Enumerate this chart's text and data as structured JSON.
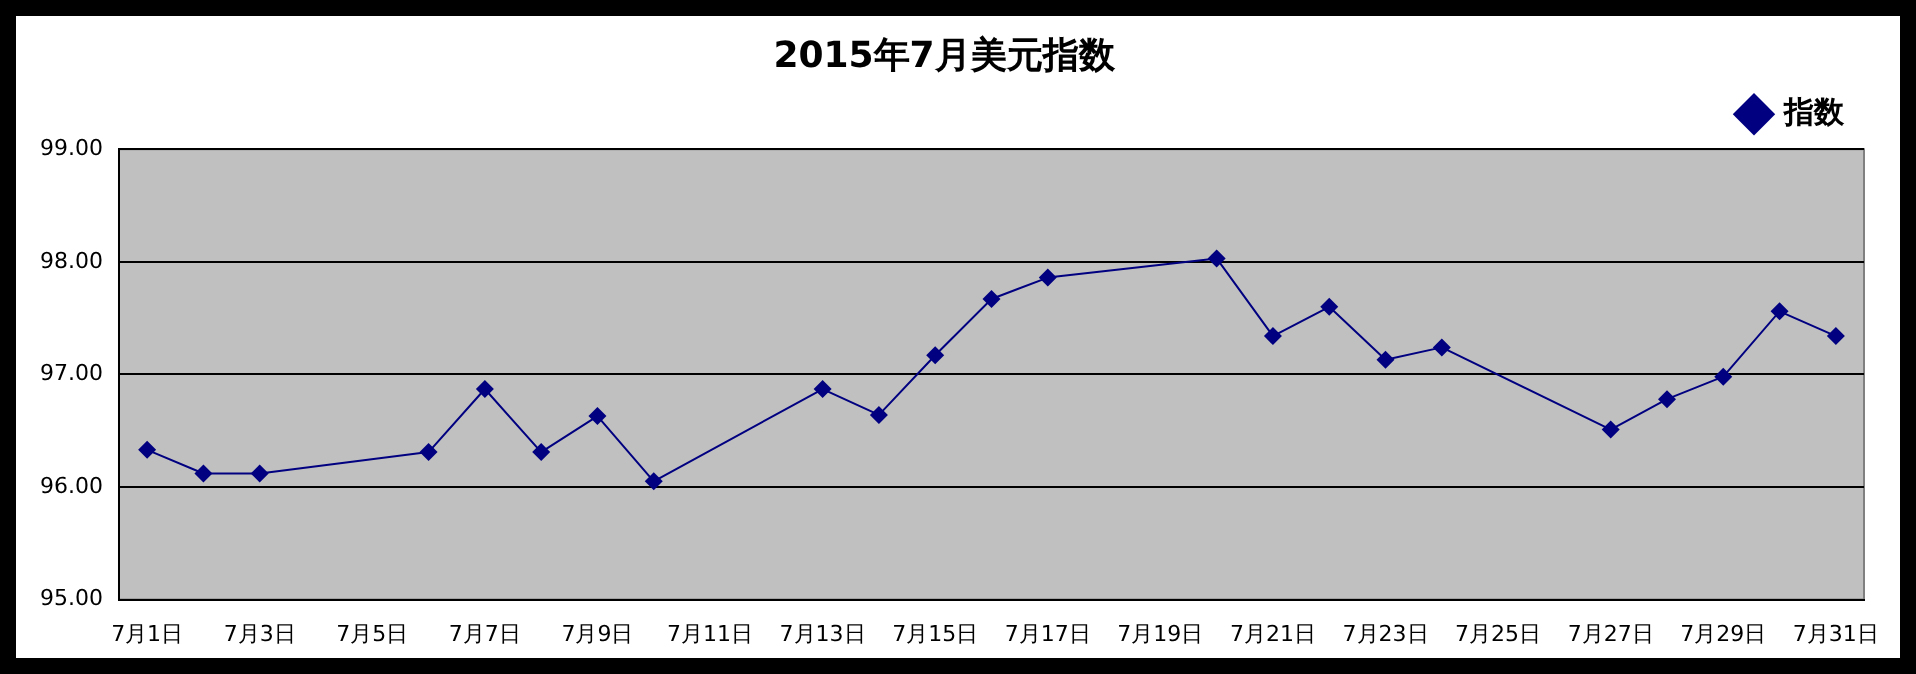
{
  "chart_data": {
    "type": "line",
    "title": "2015年7月美元指数",
    "categories": [
      "7月1日",
      null,
      "7月3日",
      null,
      "7月5日",
      null,
      "7月7日",
      null,
      "7月9日",
      null,
      "7月11日",
      null,
      "7月13日",
      null,
      "7月15日",
      null,
      "7月17日",
      null,
      "7月19日",
      null,
      "7月21日",
      null,
      "7月23日",
      null,
      "7月25日",
      null,
      "7月27日",
      null,
      "7月29日",
      null,
      "7月31日"
    ],
    "series": [
      {
        "name": "指数",
        "color": "#000080",
        "values": [
          96.33,
          96.12,
          96.12,
          null,
          null,
          96.31,
          96.87,
          96.31,
          96.63,
          96.05,
          null,
          null,
          96.87,
          96.64,
          97.17,
          97.67,
          97.86,
          null,
          null,
          98.03,
          97.34,
          97.6,
          97.13,
          97.24,
          null,
          null,
          96.51,
          96.78,
          96.98,
          97.56,
          97.34
        ]
      }
    ],
    "ylim": [
      95,
      99
    ],
    "yticks": [
      {
        "value": 95,
        "label": "95.00"
      },
      {
        "value": 96,
        "label": "96.00"
      },
      {
        "value": 97,
        "label": "97.00"
      },
      {
        "value": 98,
        "label": "98.00"
      },
      {
        "value": 99,
        "label": "99.00"
      }
    ],
    "grid": "y",
    "legend": "top right",
    "marker": "diamond",
    "line_style": "solid"
  }
}
